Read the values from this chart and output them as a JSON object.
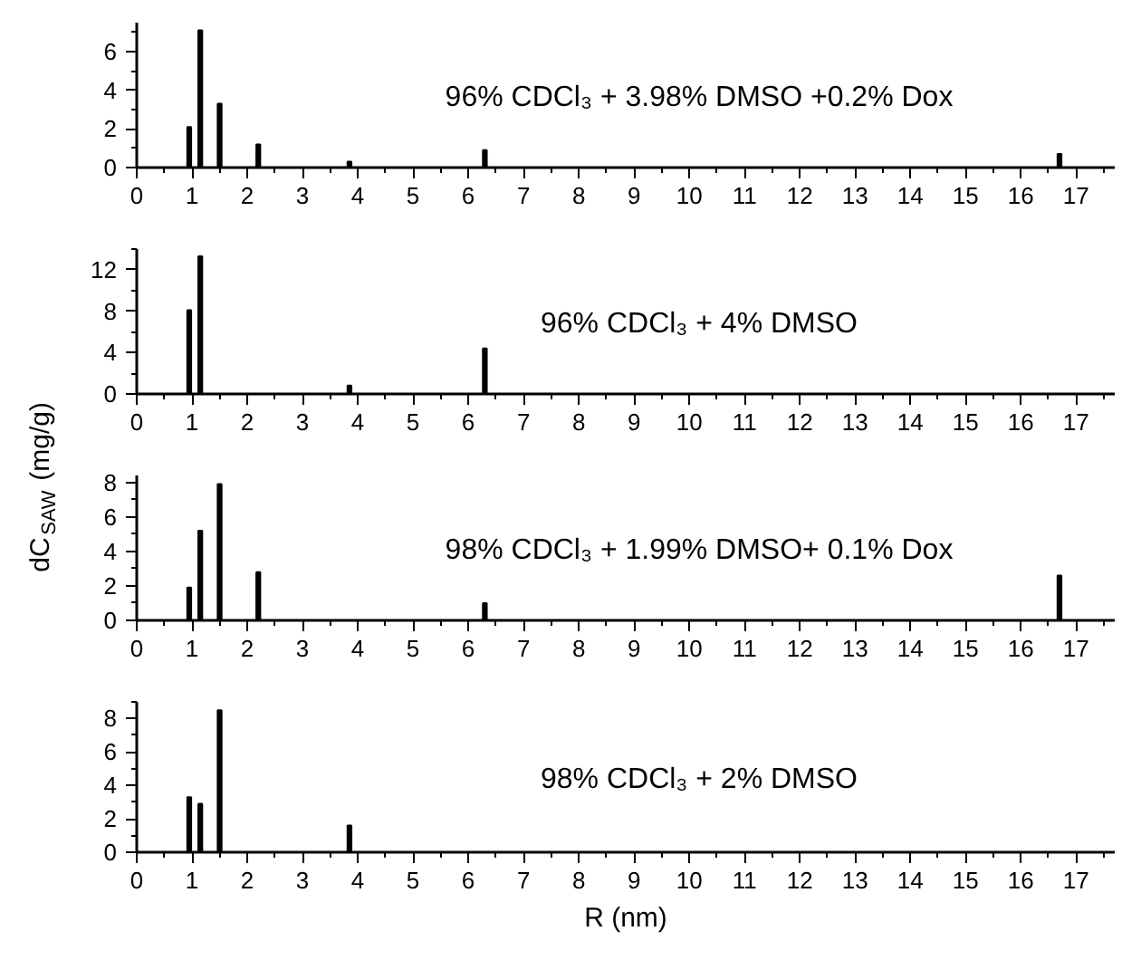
{
  "chart_data": [
    {
      "type": "bar",
      "x": [
        0.95,
        1.15,
        1.5,
        2.2,
        3.85,
        6.3,
        16.7
      ],
      "values": [
        2.1,
        7.1,
        3.3,
        1.2,
        0.3,
        0.9,
        0.7
      ],
      "color": "#000000",
      "xlim": [
        0,
        17.7
      ],
      "ylim": [
        0,
        7.5
      ],
      "xticks": [
        0,
        1,
        2,
        3,
        4,
        5,
        6,
        7,
        8,
        9,
        10,
        11,
        12,
        13,
        14,
        15,
        16,
        17,
        {
          "value": 0.5,
          "label": null
        },
        {
          "value": 1.5,
          "label": null
        },
        {
          "value": 2.5,
          "label": null
        },
        {
          "value": 3.5,
          "label": null
        },
        {
          "value": 4.5,
          "label": null
        },
        {
          "value": 5.5,
          "label": null
        },
        {
          "value": 6.5,
          "label": null
        },
        {
          "value": 7.5,
          "label": null
        },
        {
          "value": 8.5,
          "label": null
        },
        {
          "value": 9.5,
          "label": null
        },
        {
          "value": 10.5,
          "label": null
        },
        {
          "value": 11.5,
          "label": null
        },
        {
          "value": 12.5,
          "label": null
        },
        {
          "value": 13.5,
          "label": null
        },
        {
          "value": 14.5,
          "label": null
        },
        {
          "value": 15.5,
          "label": null
        },
        {
          "value": 16.5,
          "label": null
        },
        {
          "value": 17.5,
          "label": null
        }
      ],
      "yticks": [
        0,
        2,
        4,
        6,
        {
          "value": 1,
          "label": null
        },
        {
          "value": 3,
          "label": null
        },
        {
          "value": 5,
          "label": null
        },
        {
          "value": 7,
          "label": null
        }
      ],
      "annotations": [
        "96% CDCl₃ + 3.98% DMSO +0.2% Dox"
      ]
    },
    {
      "type": "bar",
      "x": [
        0.95,
        1.15,
        3.85,
        6.3
      ],
      "values": [
        8.1,
        13.3,
        0.8,
        4.4
      ],
      "color": "#000000",
      "xlim": [
        0,
        17.7
      ],
      "ylim": [
        0,
        14
      ],
      "xticks": [
        0,
        1,
        2,
        3,
        4,
        5,
        6,
        7,
        8,
        9,
        10,
        11,
        12,
        13,
        14,
        15,
        16,
        17,
        {
          "value": 0.5,
          "label": null
        },
        {
          "value": 1.5,
          "label": null
        },
        {
          "value": 2.5,
          "label": null
        },
        {
          "value": 3.5,
          "label": null
        },
        {
          "value": 4.5,
          "label": null
        },
        {
          "value": 5.5,
          "label": null
        },
        {
          "value": 6.5,
          "label": null
        },
        {
          "value": 7.5,
          "label": null
        },
        {
          "value": 8.5,
          "label": null
        },
        {
          "value": 9.5,
          "label": null
        },
        {
          "value": 10.5,
          "label": null
        },
        {
          "value": 11.5,
          "label": null
        },
        {
          "value": 12.5,
          "label": null
        },
        {
          "value": 13.5,
          "label": null
        },
        {
          "value": 14.5,
          "label": null
        },
        {
          "value": 15.5,
          "label": null
        },
        {
          "value": 16.5,
          "label": null
        },
        {
          "value": 17.5,
          "label": null
        }
      ],
      "yticks": [
        0,
        4,
        8,
        12,
        {
          "value": 2,
          "label": null
        },
        {
          "value": 6,
          "label": null
        },
        {
          "value": 10,
          "label": null
        },
        {
          "value": 14,
          "label": null
        }
      ],
      "ylabel": "dC$_{SAW}$ (mg/g)",
      "annotations": [
        "96% CDCl₃ + 4% DMSO"
      ]
    },
    {
      "type": "bar",
      "x": [
        0.95,
        1.15,
        1.5,
        2.2,
        6.3,
        16.7
      ],
      "values": [
        1.9,
        5.2,
        7.9,
        2.8,
        1.0,
        2.6
      ],
      "color": "#000000",
      "xlim": [
        0,
        17.7
      ],
      "ylim": [
        0,
        8.4
      ],
      "xticks": [
        0,
        1,
        2,
        3,
        4,
        5,
        6,
        7,
        8,
        9,
        10,
        11,
        12,
        13,
        14,
        15,
        16,
        17,
        {
          "value": 0.5,
          "label": null
        },
        {
          "value": 1.5,
          "label": null
        },
        {
          "value": 2.5,
          "label": null
        },
        {
          "value": 3.5,
          "label": null
        },
        {
          "value": 4.5,
          "label": null
        },
        {
          "value": 5.5,
          "label": null
        },
        {
          "value": 6.5,
          "label": null
        },
        {
          "value": 7.5,
          "label": null
        },
        {
          "value": 8.5,
          "label": null
        },
        {
          "value": 9.5,
          "label": null
        },
        {
          "value": 10.5,
          "label": null
        },
        {
          "value": 11.5,
          "label": null
        },
        {
          "value": 12.5,
          "label": null
        },
        {
          "value": 13.5,
          "label": null
        },
        {
          "value": 14.5,
          "label": null
        },
        {
          "value": 15.5,
          "label": null
        },
        {
          "value": 16.5,
          "label": null
        },
        {
          "value": 17.5,
          "label": null
        }
      ],
      "yticks": [
        0,
        2,
        4,
        6,
        8,
        {
          "value": 1,
          "label": null
        },
        {
          "value": 3,
          "label": null
        },
        {
          "value": 5,
          "label": null
        },
        {
          "value": 7,
          "label": null
        }
      ],
      "annotations": [
        "98% CDCl₃ + 1.99% DMSO+ 0.1% Dox"
      ]
    },
    {
      "type": "bar",
      "x": [
        0.95,
        1.15,
        1.5,
        3.85
      ],
      "values": [
        3.3,
        2.9,
        8.5,
        1.6
      ],
      "color": "#000000",
      "xlim": [
        0,
        17.7
      ],
      "ylim": [
        0,
        9
      ],
      "xticks": [
        0,
        1,
        2,
        3,
        4,
        5,
        6,
        7,
        8,
        9,
        10,
        11,
        12,
        13,
        14,
        15,
        16,
        17,
        {
          "value": 0.5,
          "label": null
        },
        {
          "value": 1.5,
          "label": null
        },
        {
          "value": 2.5,
          "label": null
        },
        {
          "value": 3.5,
          "label": null
        },
        {
          "value": 4.5,
          "label": null
        },
        {
          "value": 5.5,
          "label": null
        },
        {
          "value": 6.5,
          "label": null
        },
        {
          "value": 7.5,
          "label": null
        },
        {
          "value": 8.5,
          "label": null
        },
        {
          "value": 9.5,
          "label": null
        },
        {
          "value": 10.5,
          "label": null
        },
        {
          "value": 11.5,
          "label": null
        },
        {
          "value": 12.5,
          "label": null
        },
        {
          "value": 13.5,
          "label": null
        },
        {
          "value": 14.5,
          "label": null
        },
        {
          "value": 15.5,
          "label": null
        },
        {
          "value": 16.5,
          "label": null
        },
        {
          "value": 17.5,
          "label": null
        }
      ],
      "yticks": [
        0,
        2,
        4,
        6,
        8,
        {
          "value": 1,
          "label": null
        },
        {
          "value": 3,
          "label": null
        },
        {
          "value": 5,
          "label": null
        },
        {
          "value": 7,
          "label": null
        },
        {
          "value": 9,
          "label": null
        }
      ],
      "xlabel": "R (nm)",
      "annotations": [
        "98% CDCl₃ + 2% DMSO"
      ]
    }
  ]
}
